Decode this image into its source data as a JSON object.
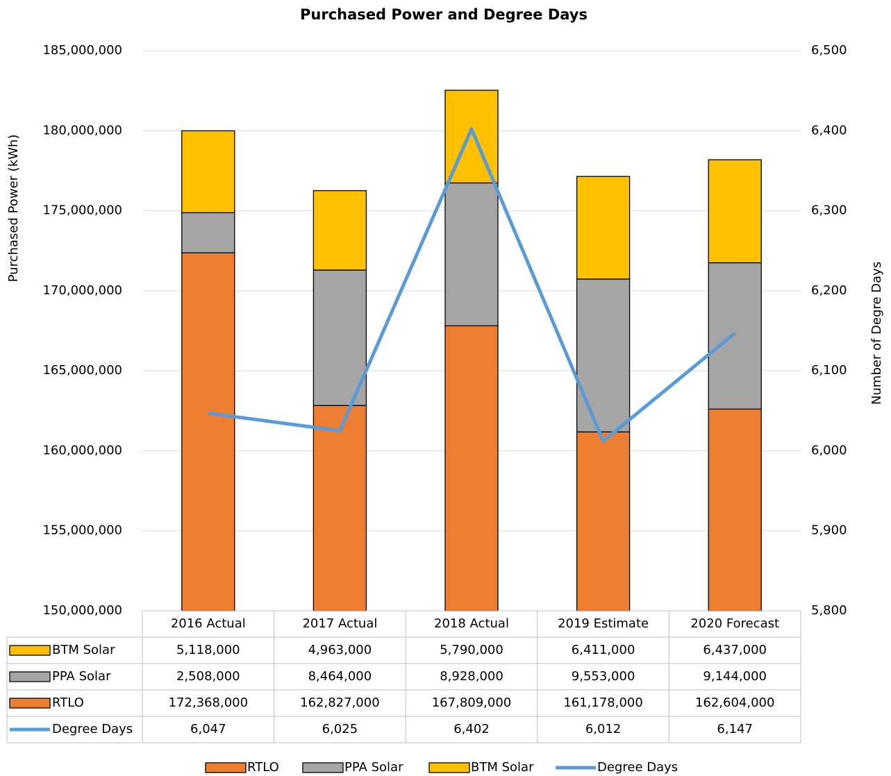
{
  "chart_data": {
    "type": "bar",
    "stacked": true,
    "title": "Purchased Power and Degree Days",
    "y_label": "Purchased Power (kWh)",
    "y2_label": "Number of Degre Days",
    "categories": [
      "2016 Actual",
      "2017 Actual",
      "2018 Actual",
      "2019 Estimate",
      "2020 Forecast"
    ],
    "series": [
      {
        "name": "RTLO",
        "type": "bar",
        "color": "#ED7D31",
        "values": [
          172368000,
          162827000,
          167809000,
          161178000,
          162604000
        ],
        "value_labels": [
          "172,368,000",
          "162,827,000",
          "167,809,000",
          "161,178,000",
          "162,604,000"
        ]
      },
      {
        "name": "PPA Solar",
        "type": "bar",
        "color": "#A5A5A5",
        "values": [
          2508000,
          8464000,
          8928000,
          9553000,
          9144000
        ],
        "value_labels": [
          "2,508,000",
          "8,464,000",
          "8,928,000",
          "9,553,000",
          "9,144,000"
        ]
      },
      {
        "name": "BTM Solar",
        "type": "bar",
        "color": "#FFC000",
        "values": [
          5118000,
          4963000,
          5790000,
          6411000,
          6437000
        ],
        "value_labels": [
          "5,118,000",
          "4,963,000",
          "5,790,000",
          "6,411,000",
          "6,437,000"
        ]
      },
      {
        "name": "Degree Days",
        "type": "line",
        "axis": "y2",
        "color": "#5B9BD5",
        "values": [
          6047,
          6025,
          6402,
          6012,
          6147
        ],
        "value_labels": [
          "6,047",
          "6,025",
          "6,402",
          "6,012",
          "6,147"
        ]
      }
    ],
    "ylim": [
      150000000,
      185000000
    ],
    "yticks": [
      {
        "value": 150000000,
        "label": "150,000,000"
      },
      {
        "value": 155000000,
        "label": "155,000,000"
      },
      {
        "value": 160000000,
        "label": "160,000,000"
      },
      {
        "value": 165000000,
        "label": "165,000,000"
      },
      {
        "value": 170000000,
        "label": "170,000,000"
      },
      {
        "value": 175000000,
        "label": "175,000,000"
      },
      {
        "value": 180000000,
        "label": "180,000,000"
      },
      {
        "value": 185000000,
        "label": "185,000,000"
      }
    ],
    "y2lim": [
      5800,
      6500
    ],
    "y2ticks": [
      {
        "value": 5800,
        "label": "5,800"
      },
      {
        "value": 5900,
        "label": "5,900"
      },
      {
        "value": 6000,
        "label": "6,000"
      },
      {
        "value": 6100,
        "label": "6,100"
      },
      {
        "value": 6200,
        "label": "6,200"
      },
      {
        "value": 6300,
        "label": "6,300"
      },
      {
        "value": 6400,
        "label": "6,400"
      },
      {
        "value": 6500,
        "label": "6,500"
      }
    ],
    "grid": true,
    "legend": "bottom",
    "data_table": true
  }
}
